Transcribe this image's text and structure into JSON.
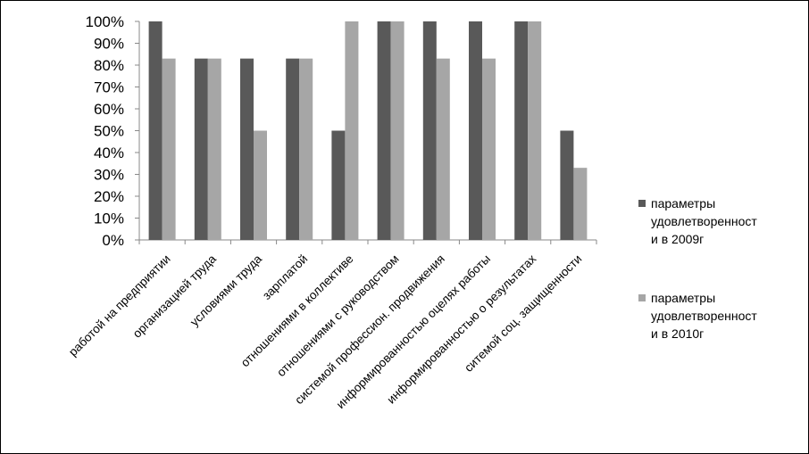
{
  "chart_data": {
    "type": "bar",
    "categories": [
      "работой на предприятии",
      "организацией труда",
      "условиями труда",
      "зарплатой",
      "отношениями в коллективе",
      "отношениями с руководством",
      "системой профессион. продвижения",
      "информированностью оцелях работы",
      "информированностью о результатах",
      "ситемой соц. защищенности"
    ],
    "series": [
      {
        "name": "параметры удовлетворенности в 2009г",
        "legend_lines": [
          "параметры",
          "удовлетворенност",
          "и в 2009г"
        ],
        "color": "#595959",
        "values": [
          100,
          83,
          83,
          83,
          50,
          100,
          100,
          100,
          100,
          50
        ]
      },
      {
        "name": "параметры удовлетворенности в 2010г",
        "legend_lines": [
          "параметры",
          "удовлетворенност",
          "и в 2010г"
        ],
        "color": "#a6a6a6",
        "values": [
          83,
          83,
          50,
          83,
          100,
          100,
          83,
          83,
          100,
          33
        ]
      }
    ],
    "yticks": [
      "0%",
      "10%",
      "20%",
      "30%",
      "40%",
      "50%",
      "60%",
      "70%",
      "80%",
      "90%",
      "100%"
    ],
    "ylim": [
      0,
      100
    ],
    "grid": false,
    "legend_position": "right"
  }
}
